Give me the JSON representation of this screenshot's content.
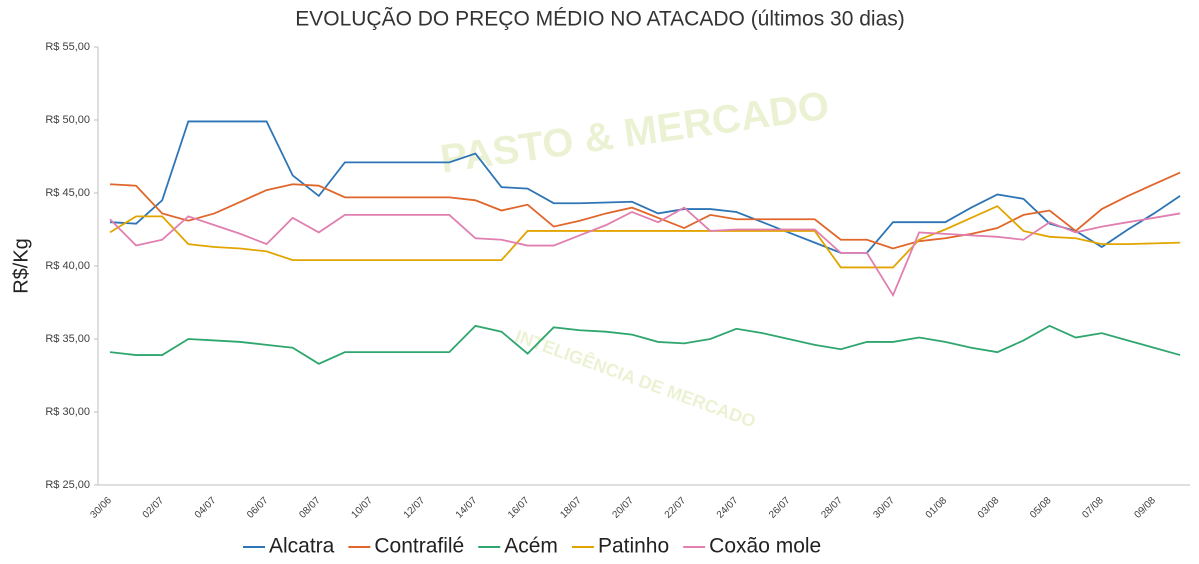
{
  "chart_data": {
    "type": "line",
    "title": "EVOLUÇÃO DO PREÇO MÉDIO NO ATACADO (últimos 30 dias)",
    "y_label": "R$/Kg",
    "watermark": {
      "title": "PASTO & MERCADO",
      "subtitle": "INTELIGÊNCIA DE MERCADO"
    },
    "categories": [
      "30/06",
      null,
      "02/07",
      null,
      "04/07",
      null,
      "06/07",
      null,
      "08/07",
      null,
      "10/07",
      null,
      "12/07",
      null,
      "14/07",
      null,
      "16/07",
      null,
      "18/07",
      null,
      "20/07",
      null,
      "22/07",
      null,
      "24/07",
      null,
      "26/07",
      null,
      "28/07",
      null,
      "30/07",
      null,
      "01/08",
      null,
      "03/08",
      null,
      "05/08",
      null,
      "07/08",
      null,
      "09/08",
      null
    ],
    "series": [
      {
        "name": "Alcatra",
        "color": "#2e75b6",
        "values": [
          43.0,
          42.9,
          44.5,
          49.9,
          49.9,
          49.9,
          49.9,
          46.2,
          44.8,
          47.1,
          47.1,
          47.1,
          47.1,
          47.1,
          47.7,
          45.4,
          45.3,
          44.3,
          44.3,
          44.35,
          44.4,
          43.6,
          43.9,
          43.9,
          43.7,
          43.0,
          42.3,
          41.6,
          40.9,
          40.9,
          43.0,
          43.0,
          43.0,
          44.0,
          44.9,
          44.6,
          42.9,
          42.4,
          41.3,
          42.5,
          43.6,
          44.8
        ]
      },
      {
        "name": "Contrafilé",
        "color": "#e0662b",
        "values": [
          45.6,
          45.5,
          43.6,
          43.1,
          43.6,
          44.4,
          45.2,
          45.6,
          45.5,
          44.7,
          44.7,
          44.7,
          44.7,
          44.7,
          44.5,
          43.8,
          44.2,
          42.7,
          43.1,
          43.6,
          44.0,
          43.3,
          42.6,
          43.5,
          43.2,
          43.2,
          43.2,
          43.2,
          41.8,
          41.8,
          41.2,
          41.7,
          41.9,
          42.2,
          42.6,
          43.5,
          43.8,
          42.4,
          43.9,
          44.8,
          45.6,
          46.4
        ]
      },
      {
        "name": "Acém",
        "color": "#2ea66e",
        "values": [
          34.1,
          33.9,
          33.9,
          35.0,
          34.9,
          34.8,
          34.6,
          34.4,
          33.3,
          34.1,
          34.1,
          34.1,
          34.1,
          34.1,
          35.9,
          35.5,
          34.0,
          35.8,
          35.6,
          35.5,
          35.3,
          34.8,
          34.7,
          35.0,
          35.7,
          35.4,
          35.0,
          34.6,
          34.3,
          34.8,
          34.8,
          35.1,
          34.8,
          34.4,
          34.1,
          34.9,
          35.9,
          35.1,
          35.4,
          34.9,
          34.4,
          33.9
        ]
      },
      {
        "name": "Patinho",
        "color": "#e2a500",
        "values": [
          42.3,
          43.4,
          43.4,
          41.5,
          41.3,
          41.2,
          41.0,
          40.4,
          40.4,
          40.4,
          40.4,
          40.4,
          40.4,
          40.4,
          40.4,
          40.4,
          42.4,
          42.4,
          42.4,
          42.4,
          42.4,
          42.4,
          42.4,
          42.4,
          42.4,
          42.4,
          42.4,
          42.4,
          39.9,
          39.9,
          39.9,
          41.8,
          42.5,
          43.3,
          44.1,
          42.4,
          42.0,
          41.9,
          41.5,
          41.5,
          41.55,
          41.6
        ]
      },
      {
        "name": "Coxão mole",
        "color": "#e07fb0",
        "values": [
          43.2,
          41.4,
          41.8,
          43.4,
          42.8,
          42.2,
          41.5,
          43.3,
          42.3,
          43.5,
          43.5,
          43.5,
          43.5,
          43.5,
          41.9,
          41.8,
          41.4,
          41.4,
          42.1,
          42.8,
          43.7,
          43.0,
          44.0,
          42.4,
          42.5,
          42.5,
          42.5,
          42.5,
          40.9,
          40.9,
          38.0,
          42.3,
          42.2,
          42.1,
          42.0,
          41.8,
          43.0,
          42.3,
          42.7,
          43.0,
          43.3,
          43.6
        ]
      }
    ],
    "ylim": [
      25,
      55
    ],
    "yticks": [
      {
        "value": 25,
        "label": "R$ 25,00"
      },
      {
        "value": 30,
        "label": "R$ 30,00"
      },
      {
        "value": 35,
        "label": "R$ 35,00"
      },
      {
        "value": 40,
        "label": "R$ 40,00"
      },
      {
        "value": 45,
        "label": "R$ 45,00"
      },
      {
        "value": 50,
        "label": "R$ 50,00"
      },
      {
        "value": 55,
        "label": "R$ 55,00"
      }
    ],
    "grid": false,
    "legend": "bottom"
  }
}
